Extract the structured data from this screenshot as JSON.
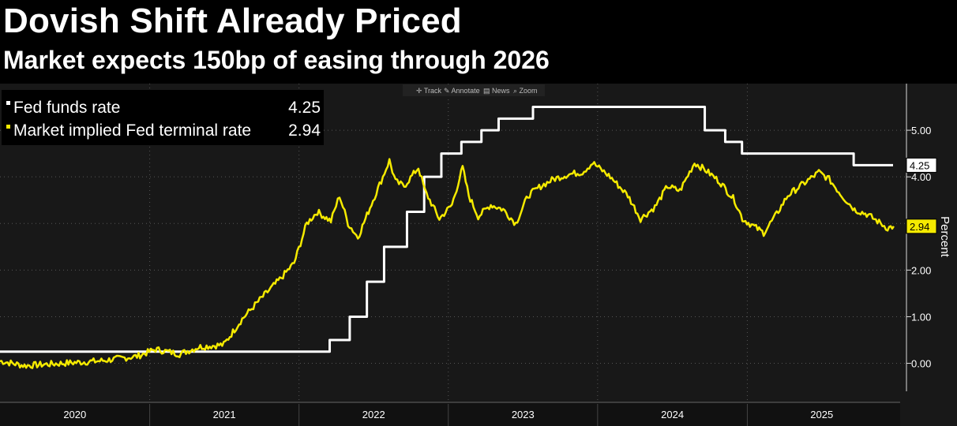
{
  "header": {
    "title": "Dovish Shift Already Priced",
    "subtitle": "Market expects 150bp of easing through 2026"
  },
  "toolbar": {
    "items": [
      {
        "label": "Track",
        "icon": "crosshair-icon"
      },
      {
        "label": "Annotate",
        "icon": "pencil-icon"
      },
      {
        "label": "News",
        "icon": "news-icon"
      },
      {
        "label": "Zoom",
        "icon": "magnifier-icon"
      }
    ]
  },
  "colors": {
    "background": "#000000",
    "plot_background": "#181818",
    "fed_funds": "#ffffff",
    "implied": "#f5ea00",
    "grid": "#555555"
  },
  "chart_data": {
    "type": "line",
    "title": "Dovish Shift Already Priced",
    "subtitle": "Market expects 150bp of easing through 2026",
    "xlabel": "",
    "ylabel": "Percent",
    "ylim": [
      -0.6,
      6.0
    ],
    "xlim": [
      "2020-01-01",
      "2025-12-31"
    ],
    "yticks": [
      0.0,
      1.0,
      2.0,
      3.0,
      4.0,
      5.0
    ],
    "ytick_labels": [
      "0.00",
      "1.00",
      "2.00",
      "3.00",
      "4.00",
      "5.00"
    ],
    "xtick_labels": [
      "2020",
      "2021",
      "2022",
      "2023",
      "2024",
      "2025"
    ],
    "grid": true,
    "legend_position": "top-left",
    "series": [
      {
        "name": "Fed funds rate",
        "last_value": "4.25",
        "color": "#ffffff",
        "step": true,
        "points": [
          [
            "2020-01-01",
            0.25
          ],
          [
            "2022-03-17",
            0.5
          ],
          [
            "2022-05-05",
            1.0
          ],
          [
            "2022-06-16",
            1.75
          ],
          [
            "2022-07-28",
            2.5
          ],
          [
            "2022-09-22",
            3.25
          ],
          [
            "2022-11-03",
            4.0
          ],
          [
            "2022-12-15",
            4.5
          ],
          [
            "2023-02-02",
            4.75
          ],
          [
            "2023-03-23",
            5.0
          ],
          [
            "2023-05-04",
            5.25
          ],
          [
            "2023-07-27",
            5.5
          ],
          [
            "2024-09-19",
            5.0
          ],
          [
            "2024-11-08",
            4.75
          ],
          [
            "2024-12-19",
            4.5
          ],
          [
            "2025-09-18",
            4.25
          ]
        ]
      },
      {
        "name": "Market implied Fed terminal rate",
        "last_value": "2.94",
        "color": "#f5ea00",
        "step": false,
        "points": [
          [
            "2020-01-01",
            0.05
          ],
          [
            "2020-03-01",
            -0.05
          ],
          [
            "2020-06-01",
            0.0
          ],
          [
            "2020-09-01",
            0.05
          ],
          [
            "2020-12-01",
            0.15
          ],
          [
            "2021-01-15",
            0.3
          ],
          [
            "2021-03-15",
            0.2
          ],
          [
            "2021-05-01",
            0.35
          ],
          [
            "2021-07-01",
            0.4
          ],
          [
            "2021-08-15",
            0.95
          ],
          [
            "2021-10-01",
            1.4
          ],
          [
            "2021-11-15",
            1.8
          ],
          [
            "2021-12-20",
            2.15
          ],
          [
            "2022-01-20",
            3.0
          ],
          [
            "2022-02-15",
            3.25
          ],
          [
            "2022-03-20",
            3.05
          ],
          [
            "2022-04-10",
            3.6
          ],
          [
            "2022-05-01",
            3.0
          ],
          [
            "2022-05-25",
            2.7
          ],
          [
            "2022-07-01",
            3.5
          ],
          [
            "2022-07-25",
            4.0
          ],
          [
            "2022-08-10",
            4.35
          ],
          [
            "2022-08-25",
            3.9
          ],
          [
            "2022-09-15",
            3.8
          ],
          [
            "2022-10-20",
            4.2
          ],
          [
            "2022-11-05",
            3.7
          ],
          [
            "2022-12-10",
            3.1
          ],
          [
            "2023-01-10",
            3.4
          ],
          [
            "2023-02-05",
            4.2
          ],
          [
            "2023-02-20",
            3.6
          ],
          [
            "2023-03-15",
            3.15
          ],
          [
            "2023-04-15",
            3.4
          ],
          [
            "2023-05-15",
            3.3
          ],
          [
            "2023-06-15",
            3.0
          ],
          [
            "2023-07-15",
            3.6
          ],
          [
            "2023-08-15",
            3.8
          ],
          [
            "2023-09-15",
            3.95
          ],
          [
            "2023-10-20",
            4.05
          ],
          [
            "2023-11-25",
            4.1
          ],
          [
            "2023-12-20",
            4.3
          ],
          [
            "2024-02-01",
            4.0
          ],
          [
            "2024-03-15",
            3.6
          ],
          [
            "2024-04-15",
            3.1
          ],
          [
            "2024-05-20",
            3.35
          ],
          [
            "2024-06-20",
            3.8
          ],
          [
            "2024-07-20",
            3.7
          ],
          [
            "2024-08-25",
            4.3
          ],
          [
            "2024-09-20",
            4.15
          ],
          [
            "2024-10-25",
            3.9
          ],
          [
            "2024-12-01",
            3.5
          ],
          [
            "2024-12-20",
            3.1
          ],
          [
            "2025-01-15",
            2.95
          ],
          [
            "2025-02-10",
            2.8
          ],
          [
            "2025-03-10",
            3.15
          ],
          [
            "2025-04-10",
            3.6
          ],
          [
            "2025-05-10",
            3.8
          ],
          [
            "2025-06-10",
            4.0
          ],
          [
            "2025-06-25",
            4.1
          ],
          [
            "2025-07-20",
            3.95
          ],
          [
            "2025-08-20",
            3.6
          ],
          [
            "2025-09-20",
            3.3
          ],
          [
            "2025-10-20",
            3.2
          ],
          [
            "2025-11-15",
            3.05
          ],
          [
            "2025-12-10",
            2.9
          ],
          [
            "2025-12-25",
            2.94
          ]
        ]
      }
    ]
  }
}
